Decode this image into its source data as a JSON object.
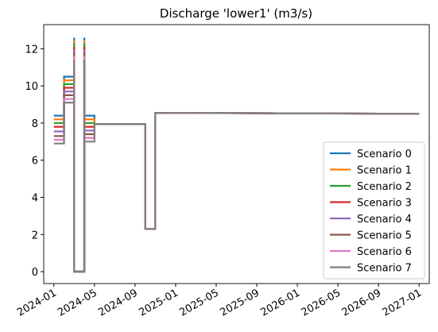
{
  "chart_data": {
    "type": "line",
    "title": "Discharge 'lower1' (m3/s)",
    "x": [
      "2024-01",
      "2024-02",
      "2024-02",
      "2024-03",
      "2024-03",
      "2024-03",
      "2024-04",
      "2024-04",
      "2024-04",
      "2024-05",
      "2024-05",
      "2024-10",
      "2024-10",
      "2024-11",
      "2024-11",
      "2027-01"
    ],
    "series": [
      {
        "name": "Scenario 0",
        "color": "#1f77b4",
        "values": [
          8.4,
          8.4,
          10.5,
          10.5,
          12.6,
          0,
          0,
          12.6,
          8.4,
          8.4,
          7.95,
          7.95,
          2.3,
          2.3,
          8.55,
          8.5
        ]
      },
      {
        "name": "Scenario 1",
        "color": "#ff7f0e",
        "values": [
          8.2,
          8.2,
          10.3,
          10.3,
          12.45,
          0,
          0,
          12.45,
          8.2,
          8.2,
          7.95,
          7.95,
          2.3,
          2.3,
          8.55,
          8.5
        ]
      },
      {
        "name": "Scenario 2",
        "color": "#2ca02c",
        "values": [
          8.0,
          8.0,
          10.1,
          10.1,
          12.3,
          0,
          0,
          12.3,
          8.0,
          8.0,
          7.95,
          7.95,
          2.3,
          2.3,
          8.55,
          8.5
        ]
      },
      {
        "name": "Scenario 3",
        "color": "#d62728",
        "values": [
          7.8,
          7.8,
          9.9,
          9.9,
          12.1,
          0,
          0,
          12.1,
          7.8,
          7.8,
          7.95,
          7.95,
          2.3,
          2.3,
          8.55,
          8.5
        ]
      },
      {
        "name": "Scenario 4",
        "color": "#9467bd",
        "values": [
          7.55,
          7.55,
          9.7,
          9.7,
          11.95,
          0,
          0,
          11.95,
          7.6,
          7.6,
          7.95,
          7.95,
          2.3,
          2.3,
          8.55,
          8.5
        ]
      },
      {
        "name": "Scenario 5",
        "color": "#8c564b",
        "values": [
          7.3,
          7.3,
          9.5,
          9.5,
          11.8,
          0,
          0,
          11.8,
          7.4,
          7.4,
          7.95,
          7.95,
          2.3,
          2.3,
          8.55,
          8.5
        ]
      },
      {
        "name": "Scenario 6",
        "color": "#e377c2",
        "values": [
          7.1,
          7.1,
          9.3,
          9.3,
          11.6,
          0,
          0,
          11.6,
          7.2,
          7.2,
          7.95,
          7.95,
          2.3,
          2.3,
          8.55,
          8.5
        ]
      },
      {
        "name": "Scenario 7",
        "color": "#7f7f7f",
        "values": [
          6.9,
          6.9,
          9.1,
          9.1,
          11.4,
          0,
          0,
          11.4,
          7.0,
          7.0,
          7.95,
          7.95,
          2.3,
          2.3,
          8.55,
          8.5
        ]
      }
    ],
    "xlim": [
      "2023-12",
      "2027-02"
    ],
    "xticks": [
      "2024-01",
      "2024-05",
      "2024-09",
      "2025-01",
      "2025-05",
      "2025-09",
      "2026-01",
      "2026-05",
      "2026-09",
      "2027-01"
    ],
    "ylim": [
      -0.64,
      13.3
    ],
    "yticks": [
      0,
      2,
      4,
      6,
      8,
      10,
      12
    ],
    "legend": "lower right"
  }
}
